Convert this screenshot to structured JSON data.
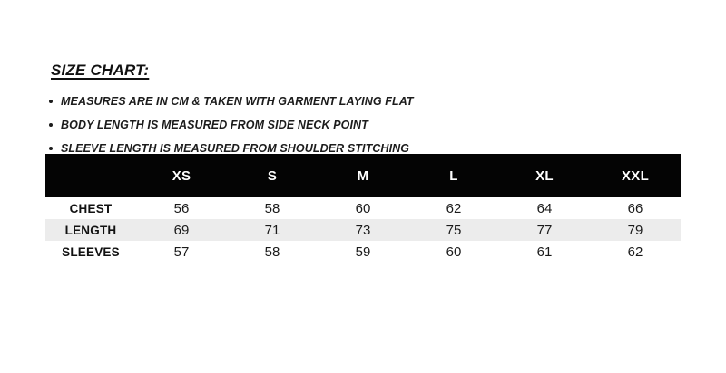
{
  "title": "SIZE CHART:",
  "notes": [
    "MEASURES ARE IN CM & TAKEN WITH GARMENT LAYING FLAT",
    "BODY LENGTH IS MEASURED FROM SIDE NECK POINT",
    "SLEEVE LENGTH IS MEASURED FROM SHOULDER STITCHING"
  ],
  "size_table": {
    "columns": [
      "XS",
      "S",
      "M",
      "L",
      "XL",
      "XXL"
    ],
    "rows": [
      {
        "label": "CHEST",
        "values": [
          "56",
          "58",
          "60",
          "62",
          "64",
          "66"
        ]
      },
      {
        "label": "LENGTH",
        "values": [
          "69",
          "71",
          "73",
          "75",
          "77",
          "79"
        ]
      },
      {
        "label": "SLEEVES",
        "values": [
          "57",
          "58",
          "59",
          "60",
          "61",
          "62"
        ]
      }
    ]
  },
  "colors": {
    "header_bg": "#040404",
    "header_text": "#ffffff",
    "stripe_bg": "#ececec",
    "text": "#1a1a1a"
  }
}
